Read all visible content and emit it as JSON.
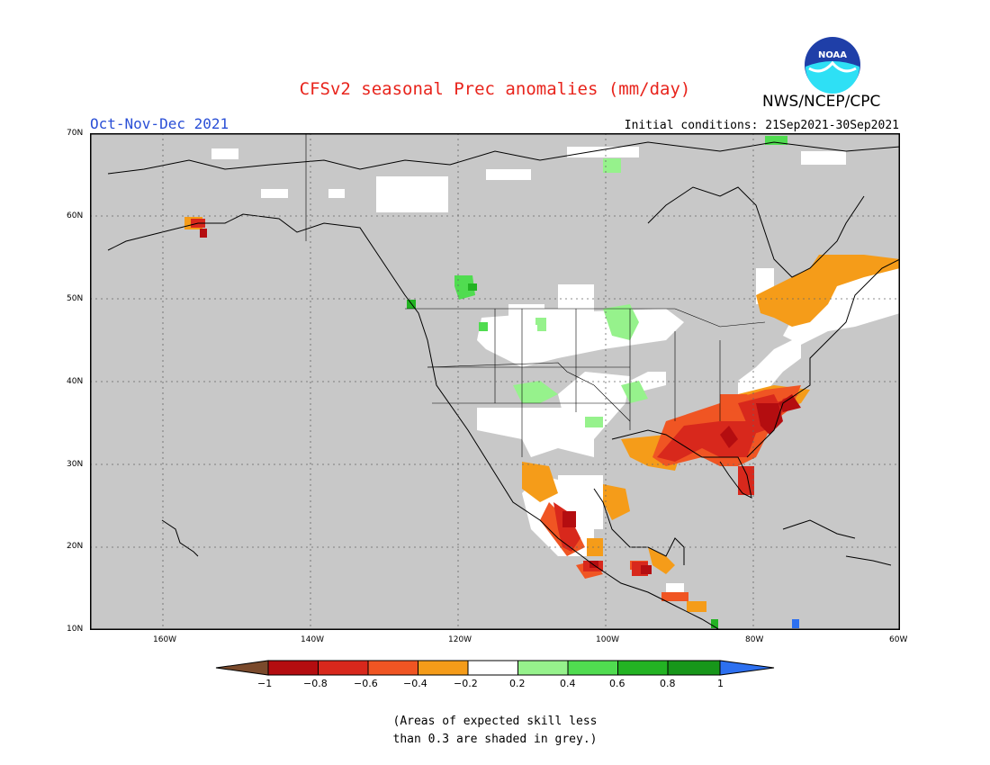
{
  "header": {
    "title": "CFSv2 seasonal Prec anomalies (mm/day)",
    "season": "Oct-Nov-Dec 2021",
    "initial_conditions": "Initial conditions: 21Sep2021-30Sep2021",
    "agency": "NWS/NCEP/CPC",
    "logo_text": "NOAA"
  },
  "map": {
    "lat_labels": [
      "70N",
      "60N",
      "50N",
      "40N",
      "30N",
      "20N",
      "10N"
    ],
    "lon_labels": [
      "160W",
      "140W",
      "120W",
      "100W",
      "80W",
      "60W"
    ],
    "colors": {
      "no_skill_grey": "#c8c8c8",
      "near_zero_white": "#ffffff",
      "neg_0_2_0_4": "#f59c19",
      "neg_0_4_0_6": "#f05523",
      "neg_0_6_0_8": "#d8281c",
      "neg_0_8_1": "#b40d10",
      "pos_0_2_0_4": "#96f28c",
      "pos_0_4_0_6": "#50dc50",
      "pos_0_6_0_8": "#23b323"
    }
  },
  "colorbar": {
    "ticks": [
      "−1",
      "−0.8",
      "−0.6",
      "−0.4",
      "−0.2",
      "0.2",
      "0.4",
      "0.6",
      "0.8",
      "1"
    ],
    "colors": [
      "#7a4a2c",
      "#b40d10",
      "#d8281c",
      "#f05523",
      "#f59c19",
      "#ffffff",
      "#96f28c",
      "#50dc50",
      "#23b323",
      "#17961a",
      "#2d70f0"
    ]
  },
  "note": {
    "line1": "(Areas of expected skill less",
    "line2": "than 0.3 are shaded in grey.)"
  }
}
